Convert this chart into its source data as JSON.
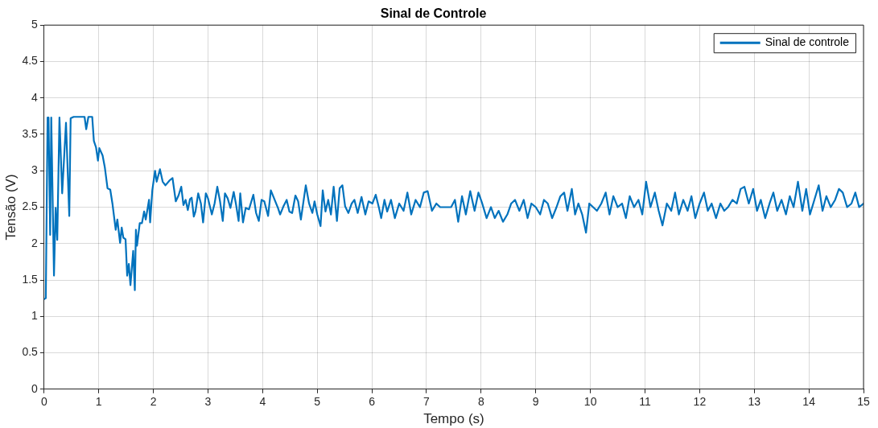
{
  "chart_data": {
    "type": "line",
    "title": "Sinal de Controle",
    "xlabel": "Tempo (s)",
    "ylabel": "Tensão (V)",
    "xlim": [
      0,
      15
    ],
    "xticks": [
      0,
      1,
      2,
      3,
      4,
      5,
      6,
      7,
      8,
      9,
      10,
      11,
      12,
      13,
      14,
      15
    ],
    "ylim": [
      0,
      5
    ],
    "yticks": [
      0,
      0.5,
      1,
      1.5,
      2,
      2.5,
      3,
      3.5,
      4,
      4.5,
      5
    ],
    "grid": true,
    "legend": "top right",
    "marker": "none",
    "line_style": "solid",
    "x": [
      0.005,
      0.03,
      0.063,
      0.08,
      0.11,
      0.13,
      0.18,
      0.21,
      0.24,
      0.28,
      0.33,
      0.4,
      0.46,
      0.485,
      0.54,
      0.74,
      0.77,
      0.81,
      0.88,
      0.91,
      0.95,
      0.985,
      1.01,
      1.07,
      1.11,
      1.16,
      1.21,
      1.25,
      1.31,
      1.34,
      1.39,
      1.42,
      1.45,
      1.49,
      1.52,
      1.55,
      1.58,
      1.63,
      1.66,
      1.68,
      1.7,
      1.75,
      1.79,
      1.83,
      1.86,
      1.92,
      1.94,
      1.98,
      2.03,
      2.06,
      2.12,
      2.17,
      2.22,
      2.3,
      2.35,
      2.41,
      2.46,
      2.51,
      2.55,
      2.59,
      2.63,
      2.67,
      2.7,
      2.74,
      2.77,
      2.82,
      2.87,
      2.91,
      2.96,
      3.0,
      3.07,
      3.12,
      3.17,
      3.22,
      3.27,
      3.31,
      3.36,
      3.41,
      3.47,
      3.51,
      3.56,
      3.59,
      3.64,
      3.69,
      3.75,
      3.83,
      3.88,
      3.93,
      3.98,
      4.03,
      4.1,
      4.15,
      4.22,
      4.28,
      4.32,
      4.38,
      4.44,
      4.49,
      4.54,
      4.6,
      4.65,
      4.7,
      4.79,
      4.85,
      4.91,
      4.95,
      5.0,
      5.06,
      5.1,
      5.15,
      5.2,
      5.25,
      5.3,
      5.36,
      5.41,
      5.46,
      5.51,
      5.57,
      5.63,
      5.68,
      5.74,
      5.81,
      5.88,
      5.94,
      6.01,
      6.07,
      6.13,
      6.17,
      6.23,
      6.28,
      6.35,
      6.42,
      6.5,
      6.58,
      6.65,
      6.72,
      6.8,
      6.88,
      6.95,
      7.02,
      7.1,
      7.18,
      7.25,
      7.35,
      7.45,
      7.52,
      7.58,
      7.65,
      7.72,
      7.8,
      7.88,
      7.95,
      8.02,
      8.1,
      8.18,
      8.25,
      8.32,
      8.4,
      8.48,
      8.55,
      8.62,
      8.7,
      8.78,
      8.85,
      8.92,
      9.0,
      9.08,
      9.15,
      9.22,
      9.3,
      9.38,
      9.45,
      9.52,
      9.58,
      9.66,
      9.72,
      9.78,
      9.85,
      9.92,
      9.98,
      10.05,
      10.12,
      10.2,
      10.28,
      10.35,
      10.42,
      10.5,
      10.58,
      10.65,
      10.72,
      10.8,
      10.88,
      10.95,
      11.02,
      11.1,
      11.18,
      11.25,
      11.32,
      11.4,
      11.48,
      11.55,
      11.62,
      11.7,
      11.78,
      11.85,
      11.92,
      12.0,
      12.08,
      12.15,
      12.22,
      12.3,
      12.38,
      12.45,
      12.52,
      12.6,
      12.68,
      12.75,
      12.82,
      12.9,
      12.98,
      13.05,
      13.12,
      13.2,
      13.28,
      13.35,
      13.42,
      13.5,
      13.58,
      13.65,
      13.72,
      13.8,
      13.88,
      13.95,
      14.02,
      14.1,
      14.18,
      14.25,
      14.32,
      14.4,
      14.48,
      14.55,
      14.62,
      14.7,
      14.78,
      14.85,
      14.92,
      15.0
    ],
    "series": [
      {
        "name": "Sinal de controle",
        "color": "#0072bd",
        "values": [
          1.24,
          1.25,
          3.73,
          3.73,
          2.12,
          3.73,
          1.56,
          2.49,
          2.05,
          3.73,
          2.69,
          3.66,
          2.38,
          3.72,
          3.74,
          3.74,
          3.57,
          3.74,
          3.74,
          3.41,
          3.32,
          3.14,
          3.31,
          3.21,
          3.05,
          2.76,
          2.74,
          2.55,
          2.19,
          2.33,
          2.01,
          2.22,
          2.08,
          2.06,
          1.56,
          1.72,
          1.43,
          1.9,
          1.36,
          2.19,
          1.97,
          2.28,
          2.28,
          2.44,
          2.33,
          2.6,
          2.29,
          2.73,
          3.0,
          2.85,
          3.02,
          2.85,
          2.8,
          2.87,
          2.9,
          2.58,
          2.66,
          2.78,
          2.53,
          2.6,
          2.46,
          2.61,
          2.63,
          2.37,
          2.44,
          2.69,
          2.55,
          2.29,
          2.69,
          2.62,
          2.4,
          2.55,
          2.78,
          2.58,
          2.31,
          2.69,
          2.62,
          2.49,
          2.71,
          2.55,
          2.31,
          2.69,
          2.29,
          2.49,
          2.47,
          2.67,
          2.42,
          2.31,
          2.6,
          2.58,
          2.38,
          2.73,
          2.6,
          2.49,
          2.4,
          2.51,
          2.6,
          2.44,
          2.42,
          2.66,
          2.58,
          2.33,
          2.8,
          2.55,
          2.42,
          2.58,
          2.4,
          2.24,
          2.73,
          2.44,
          2.6,
          2.4,
          2.78,
          2.31,
          2.76,
          2.8,
          2.51,
          2.42,
          2.55,
          2.6,
          2.42,
          2.64,
          2.4,
          2.58,
          2.55,
          2.67,
          2.49,
          2.35,
          2.6,
          2.44,
          2.6,
          2.35,
          2.55,
          2.45,
          2.7,
          2.4,
          2.6,
          2.5,
          2.7,
          2.72,
          2.45,
          2.55,
          2.5,
          2.5,
          2.5,
          2.6,
          2.3,
          2.65,
          2.4,
          2.72,
          2.45,
          2.7,
          2.55,
          2.35,
          2.5,
          2.35,
          2.45,
          2.3,
          2.4,
          2.55,
          2.6,
          2.45,
          2.6,
          2.35,
          2.55,
          2.5,
          2.4,
          2.6,
          2.55,
          2.35,
          2.5,
          2.65,
          2.7,
          2.45,
          2.75,
          2.4,
          2.55,
          2.4,
          2.15,
          2.55,
          2.5,
          2.45,
          2.55,
          2.7,
          2.4,
          2.65,
          2.5,
          2.55,
          2.35,
          2.65,
          2.5,
          2.6,
          2.4,
          2.85,
          2.5,
          2.7,
          2.45,
          2.25,
          2.55,
          2.45,
          2.7,
          2.4,
          2.6,
          2.45,
          2.65,
          2.35,
          2.55,
          2.7,
          2.45,
          2.55,
          2.35,
          2.55,
          2.45,
          2.5,
          2.6,
          2.55,
          2.75,
          2.78,
          2.55,
          2.75,
          2.45,
          2.6,
          2.35,
          2.55,
          2.7,
          2.45,
          2.6,
          2.4,
          2.65,
          2.5,
          2.85,
          2.45,
          2.75,
          2.4,
          2.6,
          2.8,
          2.45,
          2.65,
          2.5,
          2.6,
          2.75,
          2.7,
          2.5,
          2.55,
          2.7,
          2.5,
          2.55
        ]
      }
    ]
  }
}
